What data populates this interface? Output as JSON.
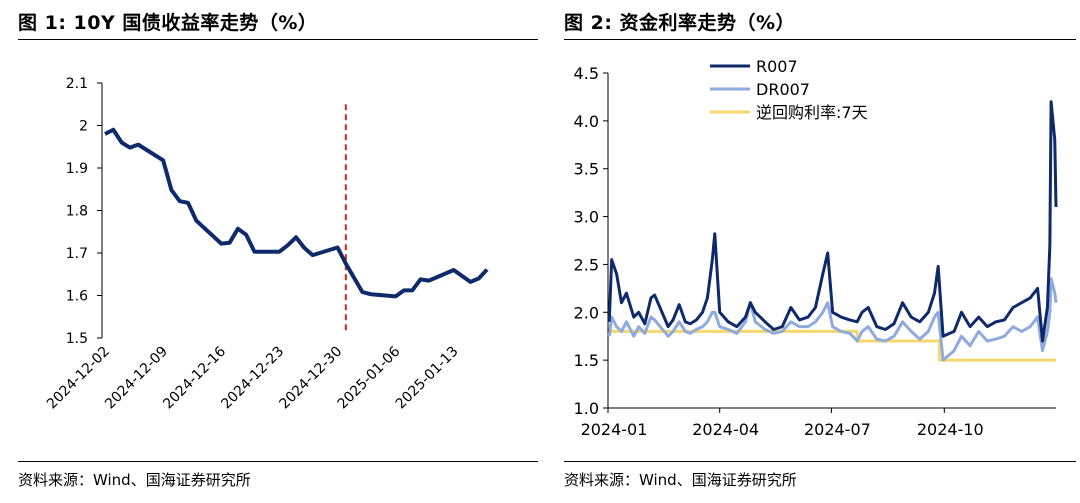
{
  "figure1": {
    "title": "图 1:  10Y 国债收益率走势（%）",
    "source": "资料来源：Wind、国海证券研究所"
  },
  "figure2": {
    "title": "图 2:  资金利率走势（%）",
    "source": "资料来源：Wind、国海证券研究所"
  },
  "colors": {
    "navy": "#0f2a6b",
    "lightblue": "#8faadc",
    "yellow": "#f5d76e",
    "red": "#e02020"
  },
  "chart_data": [
    {
      "type": "line",
      "title": "10Y 国债收益率走势（%）",
      "x_tick_labels": [
        "2024-12-02",
        "2024-12-09",
        "2024-12-16",
        "2024-12-23",
        "2024-12-30",
        "2025-01-06",
        "2025-01-13"
      ],
      "ylim": [
        1.5,
        2.1
      ],
      "y_tick_labels": [
        "1.5",
        "1.6",
        "1.7",
        "1.8",
        "1.9",
        "2",
        "2.1"
      ],
      "grid": false,
      "reference_line": {
        "date": "2024-12-31",
        "style": "dashed",
        "color": "#e02020"
      },
      "series": [
        {
          "color": "#0f2a6b",
          "points": [
            [
              "2024-12-02",
              1.98
            ],
            [
              "2024-12-03",
              1.99
            ],
            [
              "2024-12-04",
              1.96
            ],
            [
              "2024-12-05",
              1.948
            ],
            [
              "2024-12-06",
              1.955
            ],
            [
              "2024-12-09",
              1.918
            ],
            [
              "2024-12-10",
              1.848
            ],
            [
              "2024-12-11",
              1.822
            ],
            [
              "2024-12-12",
              1.818
            ],
            [
              "2024-12-13",
              1.776
            ],
            [
              "2024-12-16",
              1.722
            ],
            [
              "2024-12-17",
              1.724
            ],
            [
              "2024-12-18",
              1.757
            ],
            [
              "2024-12-19",
              1.743
            ],
            [
              "2024-12-20",
              1.703
            ],
            [
              "2024-12-23",
              1.703
            ],
            [
              "2024-12-24",
              1.718
            ],
            [
              "2024-12-25",
              1.737
            ],
            [
              "2024-12-26",
              1.712
            ],
            [
              "2024-12-27",
              1.695
            ],
            [
              "2024-12-30",
              1.713
            ],
            [
              "2024-12-31",
              1.675
            ],
            [
              "2025-01-02",
              1.608
            ],
            [
              "2025-01-03",
              1.603
            ],
            [
              "2025-01-06",
              1.598
            ],
            [
              "2025-01-07",
              1.612
            ],
            [
              "2025-01-08",
              1.612
            ],
            [
              "2025-01-09",
              1.638
            ],
            [
              "2025-01-10",
              1.635
            ],
            [
              "2025-01-13",
              1.66
            ],
            [
              "2025-01-14",
              1.646
            ],
            [
              "2025-01-15",
              1.632
            ],
            [
              "2025-01-16",
              1.64
            ],
            [
              "2025-01-17",
              1.661
            ]
          ]
        }
      ]
    },
    {
      "type": "line",
      "title": "资金利率走势（%）",
      "x_tick_labels": [
        "2024-01",
        "2024-04",
        "2024-07",
        "2024-10"
      ],
      "ylim": [
        1.0,
        4.5
      ],
      "y_tick_labels": [
        "1.0",
        "1.5",
        "2.0",
        "2.5",
        "3.0",
        "3.5",
        "4.0",
        "4.5"
      ],
      "grid": false,
      "legend": "top-center",
      "series": [
        {
          "name": "R007",
          "color": "#0f2a6b",
          "points": [
            [
              "2024-01-02",
              1.9
            ],
            [
              "2024-01-04",
              2.55
            ],
            [
              "2024-01-08",
              2.4
            ],
            [
              "2024-01-12",
              2.1
            ],
            [
              "2024-01-16",
              2.2
            ],
            [
              "2024-01-22",
              1.95
            ],
            [
              "2024-01-26",
              2.0
            ],
            [
              "2024-01-31",
              1.88
            ],
            [
              "2024-02-05",
              2.15
            ],
            [
              "2024-02-08",
              2.18
            ],
            [
              "2024-02-19",
              1.85
            ],
            [
              "2024-02-23",
              1.92
            ],
            [
              "2024-02-28",
              2.08
            ],
            [
              "2024-03-04",
              1.9
            ],
            [
              "2024-03-08",
              1.88
            ],
            [
              "2024-03-13",
              1.92
            ],
            [
              "2024-03-18",
              2.0
            ],
            [
              "2024-03-22",
              2.15
            ],
            [
              "2024-03-26",
              2.55
            ],
            [
              "2024-03-28",
              2.82
            ],
            [
              "2024-04-01",
              2.0
            ],
            [
              "2024-04-08",
              1.9
            ],
            [
              "2024-04-15",
              1.85
            ],
            [
              "2024-04-22",
              1.95
            ],
            [
              "2024-04-26",
              2.1
            ],
            [
              "2024-04-30",
              2.0
            ],
            [
              "2024-05-08",
              1.9
            ],
            [
              "2024-05-15",
              1.82
            ],
            [
              "2024-05-22",
              1.85
            ],
            [
              "2024-05-29",
              2.05
            ],
            [
              "2024-06-05",
              1.92
            ],
            [
              "2024-06-12",
              1.95
            ],
            [
              "2024-06-18",
              2.05
            ],
            [
              "2024-06-24",
              2.4
            ],
            [
              "2024-06-28",
              2.62
            ],
            [
              "2024-07-02",
              2.0
            ],
            [
              "2024-07-09",
              1.95
            ],
            [
              "2024-07-16",
              1.92
            ],
            [
              "2024-07-22",
              1.9
            ],
            [
              "2024-07-26",
              2.0
            ],
            [
              "2024-07-31",
              2.05
            ],
            [
              "2024-08-07",
              1.85
            ],
            [
              "2024-08-14",
              1.82
            ],
            [
              "2024-08-21",
              1.88
            ],
            [
              "2024-08-28",
              2.1
            ],
            [
              "2024-09-04",
              1.95
            ],
            [
              "2024-09-11",
              1.9
            ],
            [
              "2024-09-18",
              2.0
            ],
            [
              "2024-09-23",
              2.2
            ],
            [
              "2024-09-26",
              2.48
            ],
            [
              "2024-09-30",
              1.75
            ],
            [
              "2024-10-09",
              1.8
            ],
            [
              "2024-10-15",
              2.0
            ],
            [
              "2024-10-22",
              1.85
            ],
            [
              "2024-10-29",
              1.95
            ],
            [
              "2024-11-05",
              1.85
            ],
            [
              "2024-11-12",
              1.9
            ],
            [
              "2024-11-19",
              1.92
            ],
            [
              "2024-11-26",
              2.05
            ],
            [
              "2024-12-03",
              2.1
            ],
            [
              "2024-12-10",
              2.15
            ],
            [
              "2024-12-16",
              2.25
            ],
            [
              "2024-12-20",
              1.7
            ],
            [
              "2024-12-24",
              2.05
            ],
            [
              "2024-12-26",
              2.7
            ],
            [
              "2024-12-27",
              4.2
            ],
            [
              "2024-12-30",
              3.8
            ],
            [
              "2024-12-31",
              3.1
            ]
          ]
        },
        {
          "name": "DR007",
          "color": "#8faadc",
          "points": [
            [
              "2024-01-02",
              1.75
            ],
            [
              "2024-01-04",
              1.95
            ],
            [
              "2024-01-08",
              1.85
            ],
            [
              "2024-01-12",
              1.8
            ],
            [
              "2024-01-16",
              1.9
            ],
            [
              "2024-01-22",
              1.75
            ],
            [
              "2024-01-26",
              1.85
            ],
            [
              "2024-01-31",
              1.78
            ],
            [
              "2024-02-05",
              1.95
            ],
            [
              "2024-02-08",
              1.92
            ],
            [
              "2024-02-19",
              1.75
            ],
            [
              "2024-02-23",
              1.8
            ],
            [
              "2024-02-28",
              1.9
            ],
            [
              "2024-03-04",
              1.8
            ],
            [
              "2024-03-08",
              1.78
            ],
            [
              "2024-03-13",
              1.82
            ],
            [
              "2024-03-18",
              1.85
            ],
            [
              "2024-03-22",
              1.9
            ],
            [
              "2024-03-26",
              2.0
            ],
            [
              "2024-03-28",
              2.0
            ],
            [
              "2024-04-01",
              1.85
            ],
            [
              "2024-04-08",
              1.82
            ],
            [
              "2024-04-15",
              1.78
            ],
            [
              "2024-04-22",
              1.9
            ],
            [
              "2024-04-26",
              2.1
            ],
            [
              "2024-04-30",
              1.9
            ],
            [
              "2024-05-08",
              1.82
            ],
            [
              "2024-05-15",
              1.78
            ],
            [
              "2024-05-22",
              1.8
            ],
            [
              "2024-05-29",
              1.9
            ],
            [
              "2024-06-05",
              1.85
            ],
            [
              "2024-06-12",
              1.85
            ],
            [
              "2024-06-18",
              1.9
            ],
            [
              "2024-06-24",
              2.0
            ],
            [
              "2024-06-28",
              2.1
            ],
            [
              "2024-07-02",
              1.85
            ],
            [
              "2024-07-09",
              1.8
            ],
            [
              "2024-07-16",
              1.78
            ],
            [
              "2024-07-22",
              1.7
            ],
            [
              "2024-07-26",
              1.8
            ],
            [
              "2024-07-31",
              1.85
            ],
            [
              "2024-08-07",
              1.72
            ],
            [
              "2024-08-14",
              1.7
            ],
            [
              "2024-08-21",
              1.75
            ],
            [
              "2024-08-28",
              1.9
            ],
            [
              "2024-09-04",
              1.8
            ],
            [
              "2024-09-11",
              1.72
            ],
            [
              "2024-09-18",
              1.8
            ],
            [
              "2024-09-23",
              1.95
            ],
            [
              "2024-09-26",
              2.0
            ],
            [
              "2024-09-30",
              1.5
            ],
            [
              "2024-10-09",
              1.6
            ],
            [
              "2024-10-15",
              1.75
            ],
            [
              "2024-10-22",
              1.65
            ],
            [
              "2024-10-29",
              1.8
            ],
            [
              "2024-11-05",
              1.7
            ],
            [
              "2024-11-12",
              1.72
            ],
            [
              "2024-11-19",
              1.75
            ],
            [
              "2024-11-26",
              1.85
            ],
            [
              "2024-12-03",
              1.8
            ],
            [
              "2024-12-10",
              1.85
            ],
            [
              "2024-12-16",
              1.95
            ],
            [
              "2024-12-20",
              1.6
            ],
            [
              "2024-12-24",
              1.8
            ],
            [
              "2024-12-26",
              2.0
            ],
            [
              "2024-12-27",
              2.35
            ],
            [
              "2024-12-30",
              2.2
            ],
            [
              "2024-12-31",
              2.1
            ]
          ]
        },
        {
          "name": "逆回购利率:7天",
          "color": "#f5d76e",
          "step": true,
          "points": [
            [
              "2024-01-02",
              1.8
            ],
            [
              "2024-07-22",
              1.7
            ],
            [
              "2024-09-27",
              1.5
            ],
            [
              "2024-12-31",
              1.5
            ]
          ]
        }
      ]
    }
  ]
}
